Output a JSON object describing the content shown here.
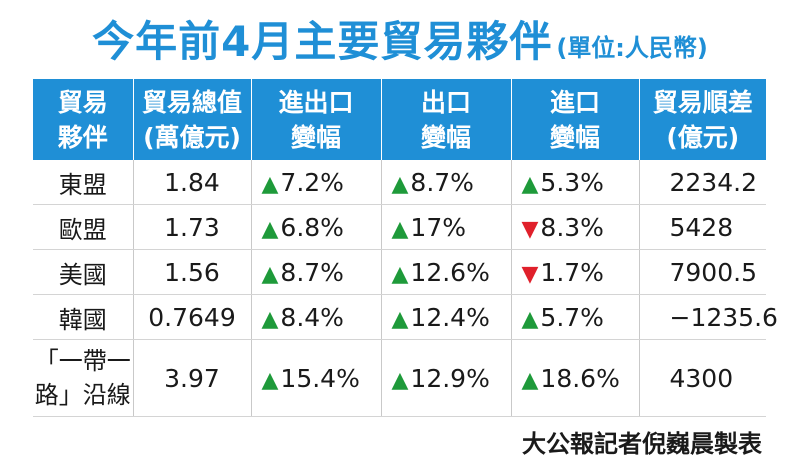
{
  "title": "今年前4月主要貿易夥伴",
  "unit": "(單位:人民幣)",
  "chart_data": {
    "type": "table",
    "columns": [
      "貿易\n夥伴",
      "貿易總值\n(萬億元)",
      "進出口\n變幅",
      "出口\n變幅",
      "進口\n變幅",
      "貿易順差\n(億元)"
    ],
    "rows": [
      {
        "partner": "東盟",
        "total": "1.84",
        "total_change": "7.2%",
        "total_dir": "up",
        "export_change": "8.7%",
        "export_dir": "up",
        "import_change": "5.3%",
        "import_dir": "up",
        "surplus": "2234.2"
      },
      {
        "partner": "歐盟",
        "total": "1.73",
        "total_change": "6.8%",
        "total_dir": "up",
        "export_change": "17%",
        "export_dir": "up",
        "import_change": "8.3%",
        "import_dir": "down",
        "surplus": "5428"
      },
      {
        "partner": "美國",
        "total": "1.56",
        "total_change": "8.7%",
        "total_dir": "up",
        "export_change": "12.6%",
        "export_dir": "up",
        "import_change": "1.7%",
        "import_dir": "down",
        "surplus": "7900.5"
      },
      {
        "partner": "韓國",
        "total": "0.7649",
        "total_change": "8.4%",
        "total_dir": "up",
        "export_change": "12.4%",
        "export_dir": "up",
        "import_change": "5.7%",
        "import_dir": "up",
        "surplus": "−1235.6"
      },
      {
        "partner": "「一帶一\n路」沿線",
        "total": "3.97",
        "total_change": "15.4%",
        "total_dir": "up",
        "export_change": "12.9%",
        "export_dir": "up",
        "import_change": "18.6%",
        "import_dir": "up",
        "surplus": "4300"
      }
    ]
  },
  "credit": "大公報記者倪巍晨製表",
  "colors": {
    "header_bg": "#1f8fd6",
    "title": "#1f8fd6",
    "up": "#1e9a3a",
    "down": "#e0202b"
  },
  "arrows": {
    "up": "▲",
    "down": "▼"
  }
}
